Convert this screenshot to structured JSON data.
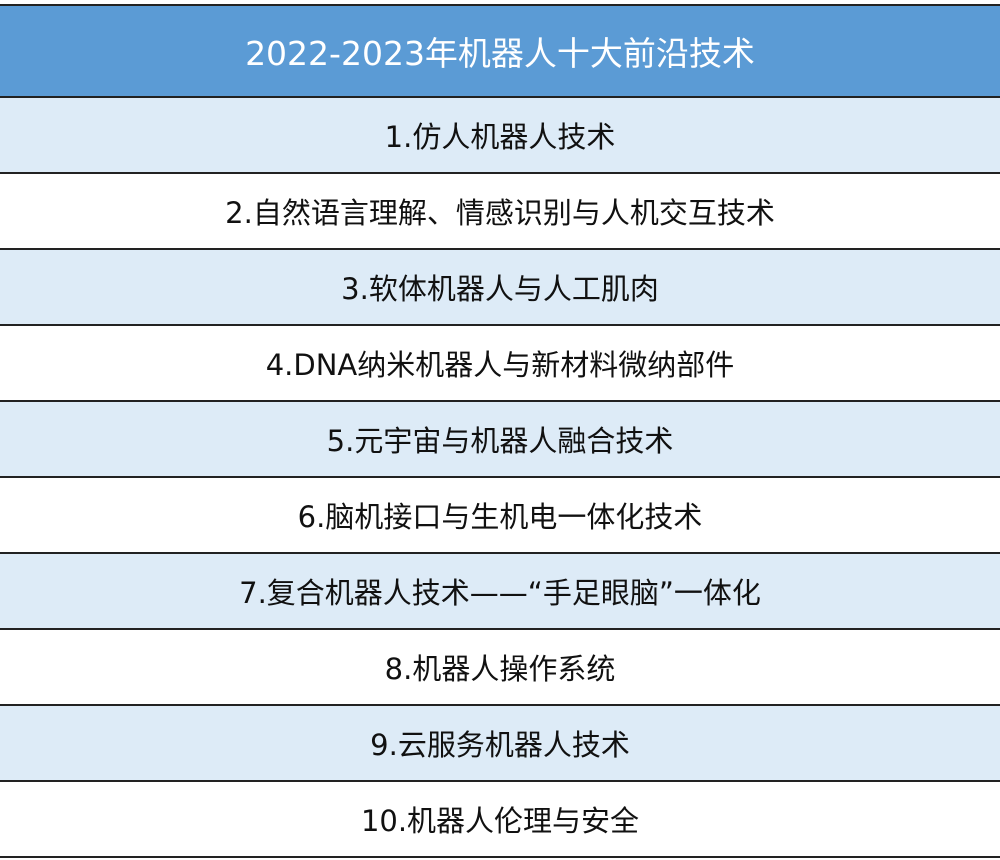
{
  "title": "2022-2023年机器人十大前沿技术",
  "colors": {
    "header_bg": "#5b9bd5",
    "alt_row_bg": "#ddebf7",
    "header_text": "#ffffff"
  },
  "items": [
    "1.仿人机器人技术",
    "2.自然语言理解、情感识别与人机交互技术",
    "3.软体机器人与人工肌肉",
    "4.DNA纳米机器人与新材料微纳部件",
    "5.元宇宙与机器人融合技术",
    "6.脑机接口与生机电一体化技术",
    "7.复合机器人技术——“手足眼脑”一体化",
    "8.机器人操作系统",
    "9.云服务机器人技术",
    "10.机器人伦理与安全"
  ]
}
